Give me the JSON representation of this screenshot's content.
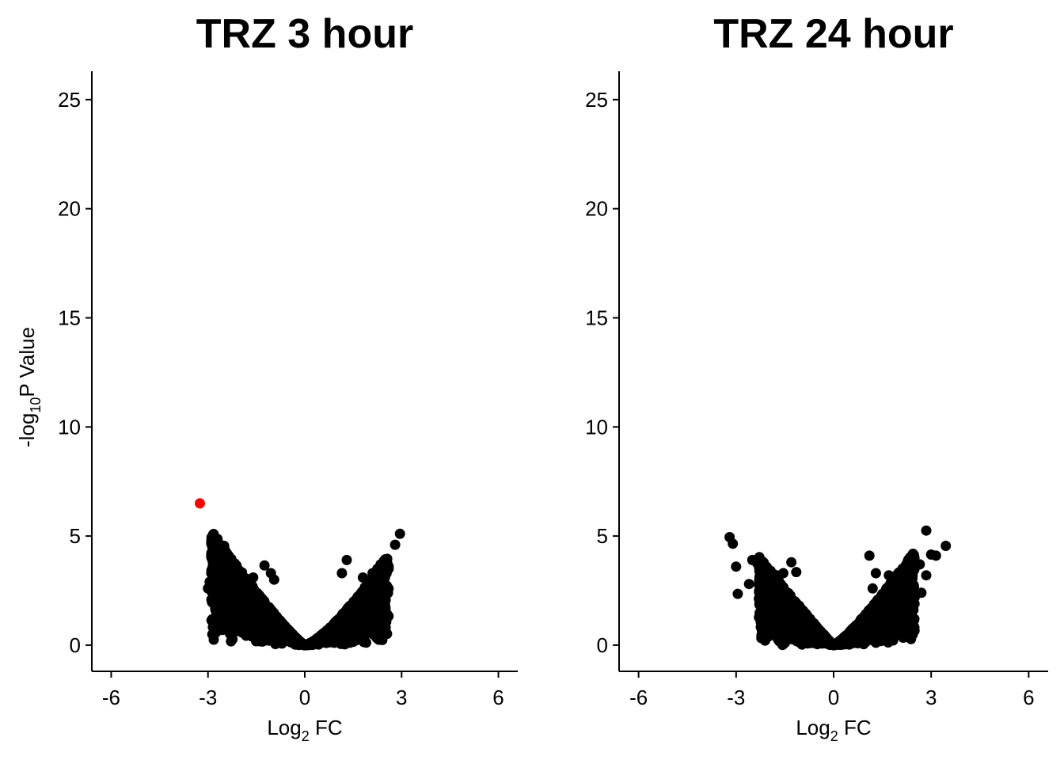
{
  "chart_data": [
    {
      "type": "scatter",
      "title": "TRZ 3 hour",
      "xlabel": {
        "main": "Log",
        "sub": "2",
        "rest": " FC"
      },
      "ylabel": {
        "main": "-log",
        "sub": "10",
        "rest": "P Value"
      },
      "xlim": [
        -6.6,
        6.6
      ],
      "ylim": [
        -1.2,
        26.3
      ],
      "xticks": [
        -6,
        -3,
        0,
        3,
        6
      ],
      "xtick_labels": [
        "-6",
        "-3",
        "0",
        "3",
        "6"
      ],
      "yticks": [
        0,
        5,
        10,
        15,
        20,
        25
      ],
      "ytick_labels": [
        "0",
        "5",
        "10",
        "15",
        "20",
        "25"
      ],
      "colors": {
        "point": "#000000",
        "highlight": "#ff0000"
      },
      "cloud": {
        "description_values": "volcano envelope: y_max(x) ≈ a*|x|^p, points drawn densely beneath it",
        "x_range": [
          -2.9,
          2.6
        ],
        "envelope_left": {
          "a": 1.55,
          "p": 1.15
        },
        "envelope_right": {
          "a": 1.15,
          "p": 1.35
        },
        "n_points": 2600
      },
      "points": [
        {
          "x": -3.25,
          "y": 6.5,
          "highlight": true
        },
        {
          "x": 2.95,
          "y": 5.1
        },
        {
          "x": 2.8,
          "y": 4.6
        },
        {
          "x": 2.45,
          "y": 3.85
        },
        {
          "x": 2.35,
          "y": 3.7
        },
        {
          "x": 2.1,
          "y": 3.3
        },
        {
          "x": 2.25,
          "y": 3.5
        },
        {
          "x": 2.4,
          "y": 3.0
        },
        {
          "x": 1.3,
          "y": 3.9
        },
        {
          "x": 1.15,
          "y": 3.3
        },
        {
          "x": 1.8,
          "y": 3.1
        },
        {
          "x": 1.95,
          "y": 2.8
        },
        {
          "x": 2.3,
          "y": 2.6
        },
        {
          "x": -2.5,
          "y": 4.55
        },
        {
          "x": -2.65,
          "y": 4.2
        },
        {
          "x": -2.75,
          "y": 3.9
        },
        {
          "x": -2.85,
          "y": 3.6
        },
        {
          "x": -2.9,
          "y": 3.3
        },
        {
          "x": -2.95,
          "y": 2.9
        },
        {
          "x": -3.0,
          "y": 2.6
        },
        {
          "x": -2.55,
          "y": 2.0
        },
        {
          "x": -2.4,
          "y": 1.9
        },
        {
          "x": -2.2,
          "y": 1.4
        },
        {
          "x": -1.25,
          "y": 3.65
        },
        {
          "x": -1.05,
          "y": 3.3
        },
        {
          "x": -0.95,
          "y": 3.0
        },
        {
          "x": -1.6,
          "y": 3.1
        },
        {
          "x": -2.1,
          "y": 3.4
        },
        {
          "x": -2.3,
          "y": 3.7
        }
      ]
    },
    {
      "type": "scatter",
      "title": "TRZ 24 hour",
      "xlabel": {
        "main": "Log",
        "sub": "2",
        "rest": " FC"
      },
      "ylabel": {
        "main": "",
        "sub": "",
        "rest": ""
      },
      "xlim": [
        -6.6,
        6.6
      ],
      "ylim": [
        -1.2,
        26.3
      ],
      "xticks": [
        -6,
        -3,
        0,
        3,
        6
      ],
      "xtick_labels": [
        "-6",
        "-3",
        "0",
        "3",
        "6"
      ],
      "yticks": [
        0,
        5,
        10,
        15,
        20,
        25
      ],
      "ytick_labels": [
        "0",
        "5",
        "10",
        "15",
        "20",
        "25"
      ],
      "colors": {
        "point": "#000000",
        "highlight": "#ff0000"
      },
      "cloud": {
        "description_values": "volcano envelope: y_max(x) ≈ a*|x|^p, points drawn densely beneath it",
        "x_range": [
          -2.3,
          2.5
        ],
        "envelope_left": {
          "a": 1.7,
          "p": 1.05
        },
        "envelope_right": {
          "a": 1.45,
          "p": 1.2
        },
        "n_points": 2600
      },
      "points": [
        {
          "x": -3.2,
          "y": 4.95
        },
        {
          "x": -3.1,
          "y": 4.65
        },
        {
          "x": -3.0,
          "y": 3.6
        },
        {
          "x": -2.95,
          "y": 2.35
        },
        {
          "x": -2.5,
          "y": 3.9
        },
        {
          "x": -2.35,
          "y": 3.75
        },
        {
          "x": -2.15,
          "y": 3.4
        },
        {
          "x": -1.75,
          "y": 3.2
        },
        {
          "x": -1.55,
          "y": 3.3
        },
        {
          "x": -1.3,
          "y": 3.8
        },
        {
          "x": -1.15,
          "y": 3.35
        },
        {
          "x": -2.6,
          "y": 2.8
        },
        {
          "x": 2.85,
          "y": 5.25
        },
        {
          "x": 3.45,
          "y": 4.55
        },
        {
          "x": 3.0,
          "y": 4.15
        },
        {
          "x": 3.15,
          "y": 4.1
        },
        {
          "x": 2.65,
          "y": 3.7
        },
        {
          "x": 2.85,
          "y": 3.2
        },
        {
          "x": 2.7,
          "y": 2.4
        },
        {
          "x": 2.45,
          "y": 3.55
        },
        {
          "x": 2.2,
          "y": 3.3
        },
        {
          "x": 1.1,
          "y": 4.1
        },
        {
          "x": 1.3,
          "y": 3.3
        },
        {
          "x": 1.7,
          "y": 3.2
        },
        {
          "x": 2.1,
          "y": 3.0
        },
        {
          "x": 1.2,
          "y": 2.6
        },
        {
          "x": 1.85,
          "y": 1.4
        },
        {
          "x": 1.9,
          "y": 1.0
        }
      ]
    }
  ]
}
